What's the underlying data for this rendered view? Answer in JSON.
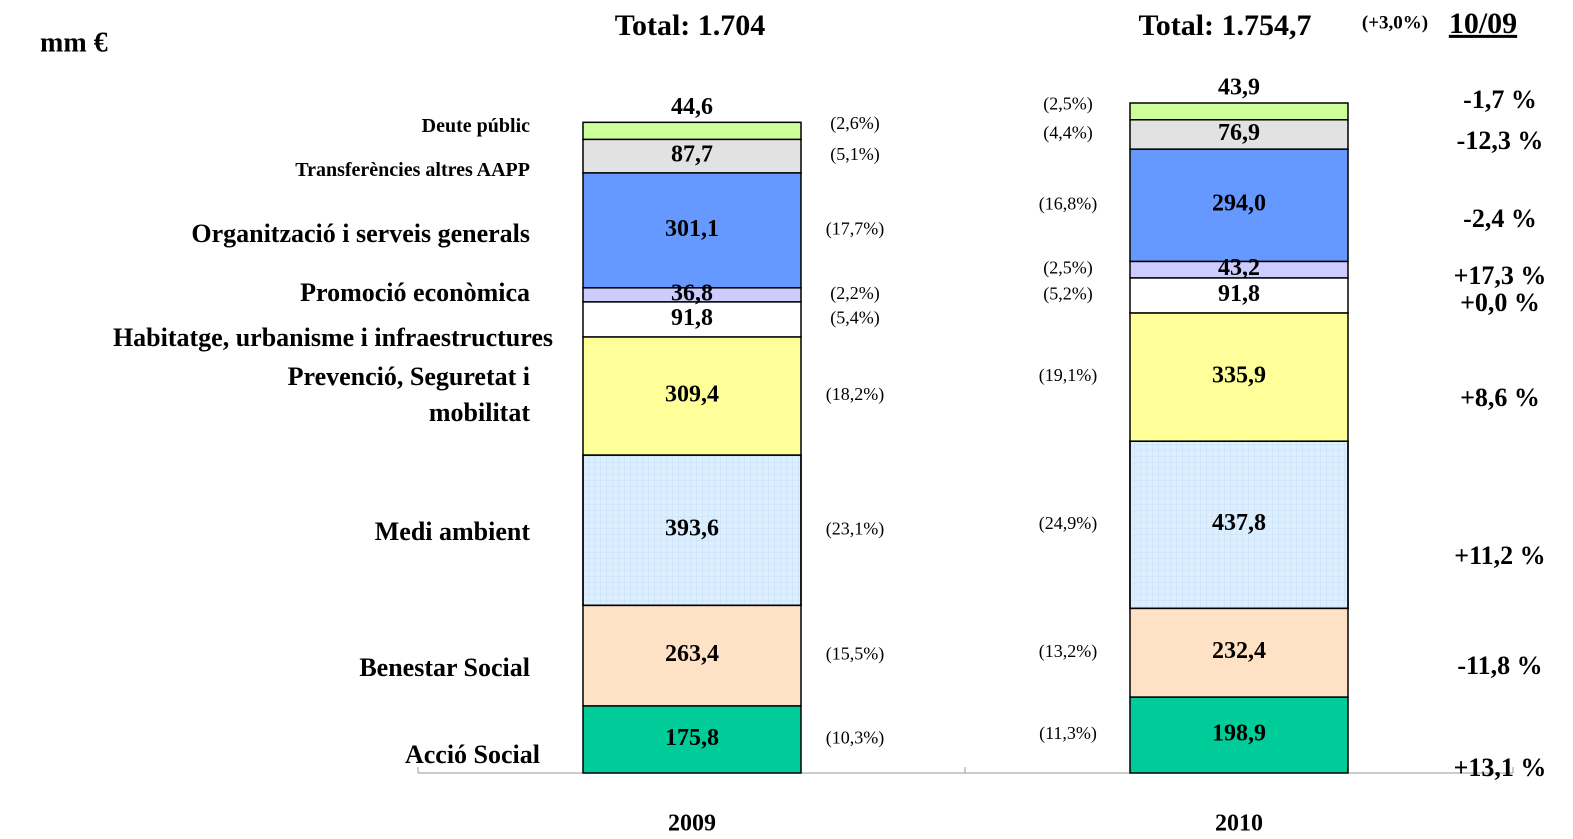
{
  "chart_data": {
    "type": "bar",
    "stacked": true,
    "unit_label": "mm €",
    "categories": [
      "2009",
      "2010"
    ],
    "totals": [
      "Total: 1.704",
      "Total: 1.754,7"
    ],
    "change_header": "(+3,0%)",
    "change_period": "10/09",
    "series": [
      {
        "name": "Acció Social",
        "color": "#00cc99",
        "values": [
          175.8,
          198.9
        ],
        "value_labels": [
          "175,8",
          "198,9"
        ],
        "share_labels": [
          "(10,3%)",
          "(11,3%)"
        ],
        "change_label": "+13,1 %"
      },
      {
        "name": "Benestar Social",
        "color": "#ffe2c6",
        "values": [
          263.4,
          232.4
        ],
        "value_labels": [
          "263,4",
          "232,4"
        ],
        "share_labels": [
          "(15,5%)",
          "(13,2%)"
        ],
        "change_label": "-11,8 %"
      },
      {
        "name": "Medi ambient",
        "color": "#ddeeff",
        "values": [
          393.6,
          437.8
        ],
        "value_labels": [
          "393,6",
          "437,8"
        ],
        "share_labels": [
          "(23,1%)",
          "(24,9%)"
        ],
        "change_label": "+11,2 %"
      },
      {
        "name": "Prevenció, Seguretat i mobilitat",
        "color": "#ffff99",
        "values": [
          309.4,
          335.9
        ],
        "value_labels": [
          "309,4",
          "335,9"
        ],
        "share_labels": [
          "(18,2%)",
          "(19,1%)"
        ],
        "change_label": "+8,6 %"
      },
      {
        "name": "Habitatge, urbanisme i infraestructures",
        "color": "#ffffff",
        "values": [
          91.8,
          91.8
        ],
        "value_labels": [
          "91,8",
          "91,8"
        ],
        "share_labels": [
          "(5,4%)",
          "(5,2%)"
        ],
        "change_label": "+0,0 %"
      },
      {
        "name": "Promoció econòmica",
        "color": "#ccccff",
        "values": [
          36.8,
          43.2
        ],
        "value_labels": [
          "36,8",
          "43,2"
        ],
        "share_labels": [
          "(2,2%)",
          "(2,5%)"
        ],
        "change_label": "+17,3 %"
      },
      {
        "name": "Organització i serveis generals",
        "color": "#6699ff",
        "values": [
          301.1,
          294.0
        ],
        "value_labels": [
          "301,1",
          "294,0"
        ],
        "share_labels": [
          "(17,7%)",
          "(16,8%)"
        ],
        "change_label": "-2,4 %"
      },
      {
        "name": "Transferències  altres AAPP",
        "color": "#e2e2e2",
        "values": [
          87.7,
          76.9
        ],
        "value_labels": [
          "87,7",
          "76,9"
        ],
        "share_labels": [
          "(5,1%)",
          "(4,4%)"
        ],
        "change_label": "-12,3 %"
      },
      {
        "name": "Deute públic",
        "color": "#ccff99",
        "values": [
          44.6,
          43.9
        ],
        "value_labels": [
          "44,6",
          "43,9"
        ],
        "share_labels": [
          "(2,6%)",
          "(2,5%)"
        ],
        "change_label": "-1,7 %"
      }
    ]
  }
}
